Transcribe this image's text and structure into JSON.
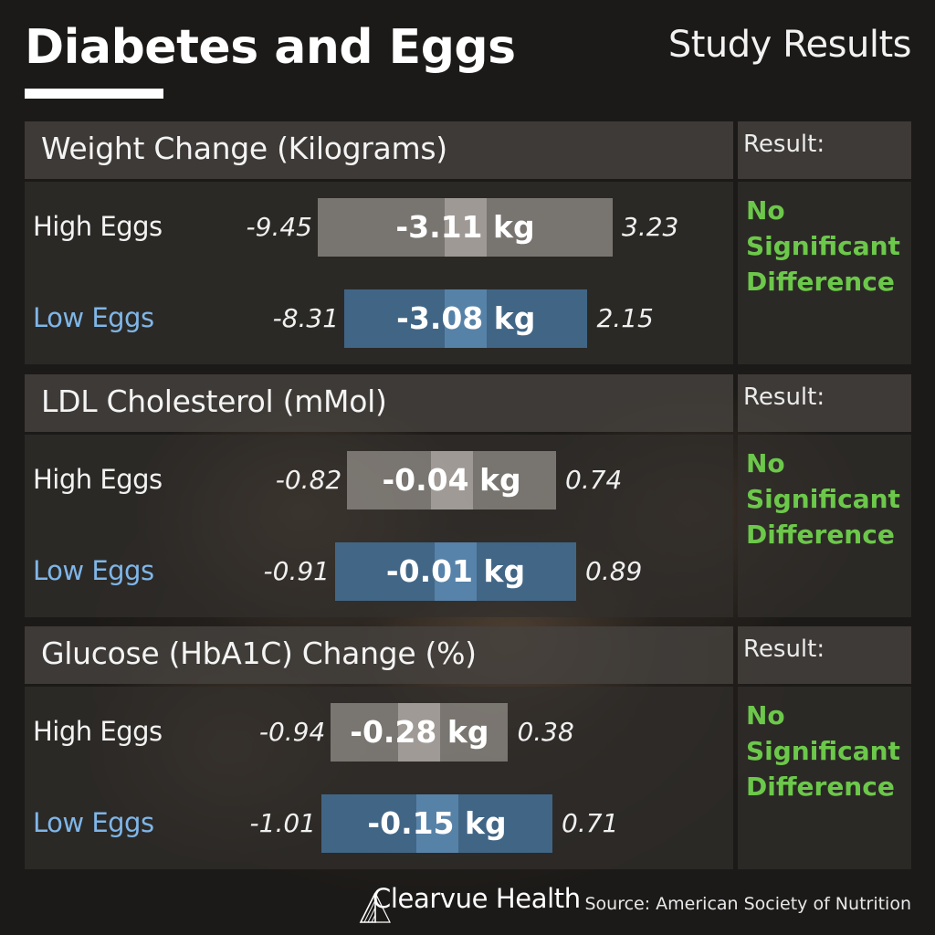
{
  "header": {
    "title": "Diabetes and Eggs",
    "subtitle": "Study Results"
  },
  "chart_data": [
    {
      "type": "bar",
      "title": "Weight Change (Kilograms)",
      "result_label": "Result:",
      "result": "No Significant Difference",
      "axis_range": [
        -10,
        4
      ],
      "series": [
        {
          "name": "High Eggs",
          "mean": -3.11,
          "mean_label": "-3.11 kg",
          "ci_low": -9.45,
          "ci_high": 3.23,
          "ci_low_label": "-9.45",
          "ci_high_label": "3.23",
          "color": "#9a9590"
        },
        {
          "name": "Low Eggs",
          "mean": -3.08,
          "mean_label": "-3.08 kg",
          "ci_low": -8.31,
          "ci_high": 2.15,
          "ci_low_label": "-8.31",
          "ci_high_label": "2.15",
          "color": "#4a7aa5"
        }
      ]
    },
    {
      "type": "bar",
      "title": "LDL Cholesterol (mMol)",
      "result_label": "Result:",
      "result": "No Significant Difference",
      "axis_range": [
        -1,
        1
      ],
      "series": [
        {
          "name": "High Eggs",
          "mean": -0.04,
          "mean_label": "-0.04 kg",
          "ci_low": -0.82,
          "ci_high": 0.74,
          "ci_low_label": "-0.82",
          "ci_high_label": "0.74",
          "color": "#9a9590"
        },
        {
          "name": "Low Eggs",
          "mean": -0.01,
          "mean_label": "-0.01 kg",
          "ci_low": -0.91,
          "ci_high": 0.89,
          "ci_low_label": "-0.91",
          "ci_high_label": "0.89",
          "color": "#4a7aa5"
        }
      ]
    },
    {
      "type": "bar",
      "title": "Glucose (HbA1C) Change (%)",
      "result_label": "Result:",
      "result": "No Significant Difference",
      "axis_range": [
        -1.2,
        0.6
      ],
      "series": [
        {
          "name": "High Eggs",
          "mean": -0.28,
          "mean_label": "-0.28 kg",
          "ci_low": -0.94,
          "ci_high": 0.38,
          "ci_low_label": "-0.94",
          "ci_high_label": "0.38",
          "color": "#9a9590"
        },
        {
          "name": "Low Eggs",
          "mean": -0.15,
          "mean_label": "-0.15 kg",
          "ci_low": -1.01,
          "ci_high": 0.71,
          "ci_low_label": "-1.01",
          "ci_high_label": "0.71",
          "color": "#4a7aa5"
        }
      ]
    }
  ],
  "footer": {
    "brand": "Clearvue Health",
    "brand_icon": "book-logo-icon",
    "source": "Source: American Society of Nutrition"
  },
  "colors": {
    "result_green": "#6cc84a",
    "low_label_blue": "#7fb6e8"
  }
}
